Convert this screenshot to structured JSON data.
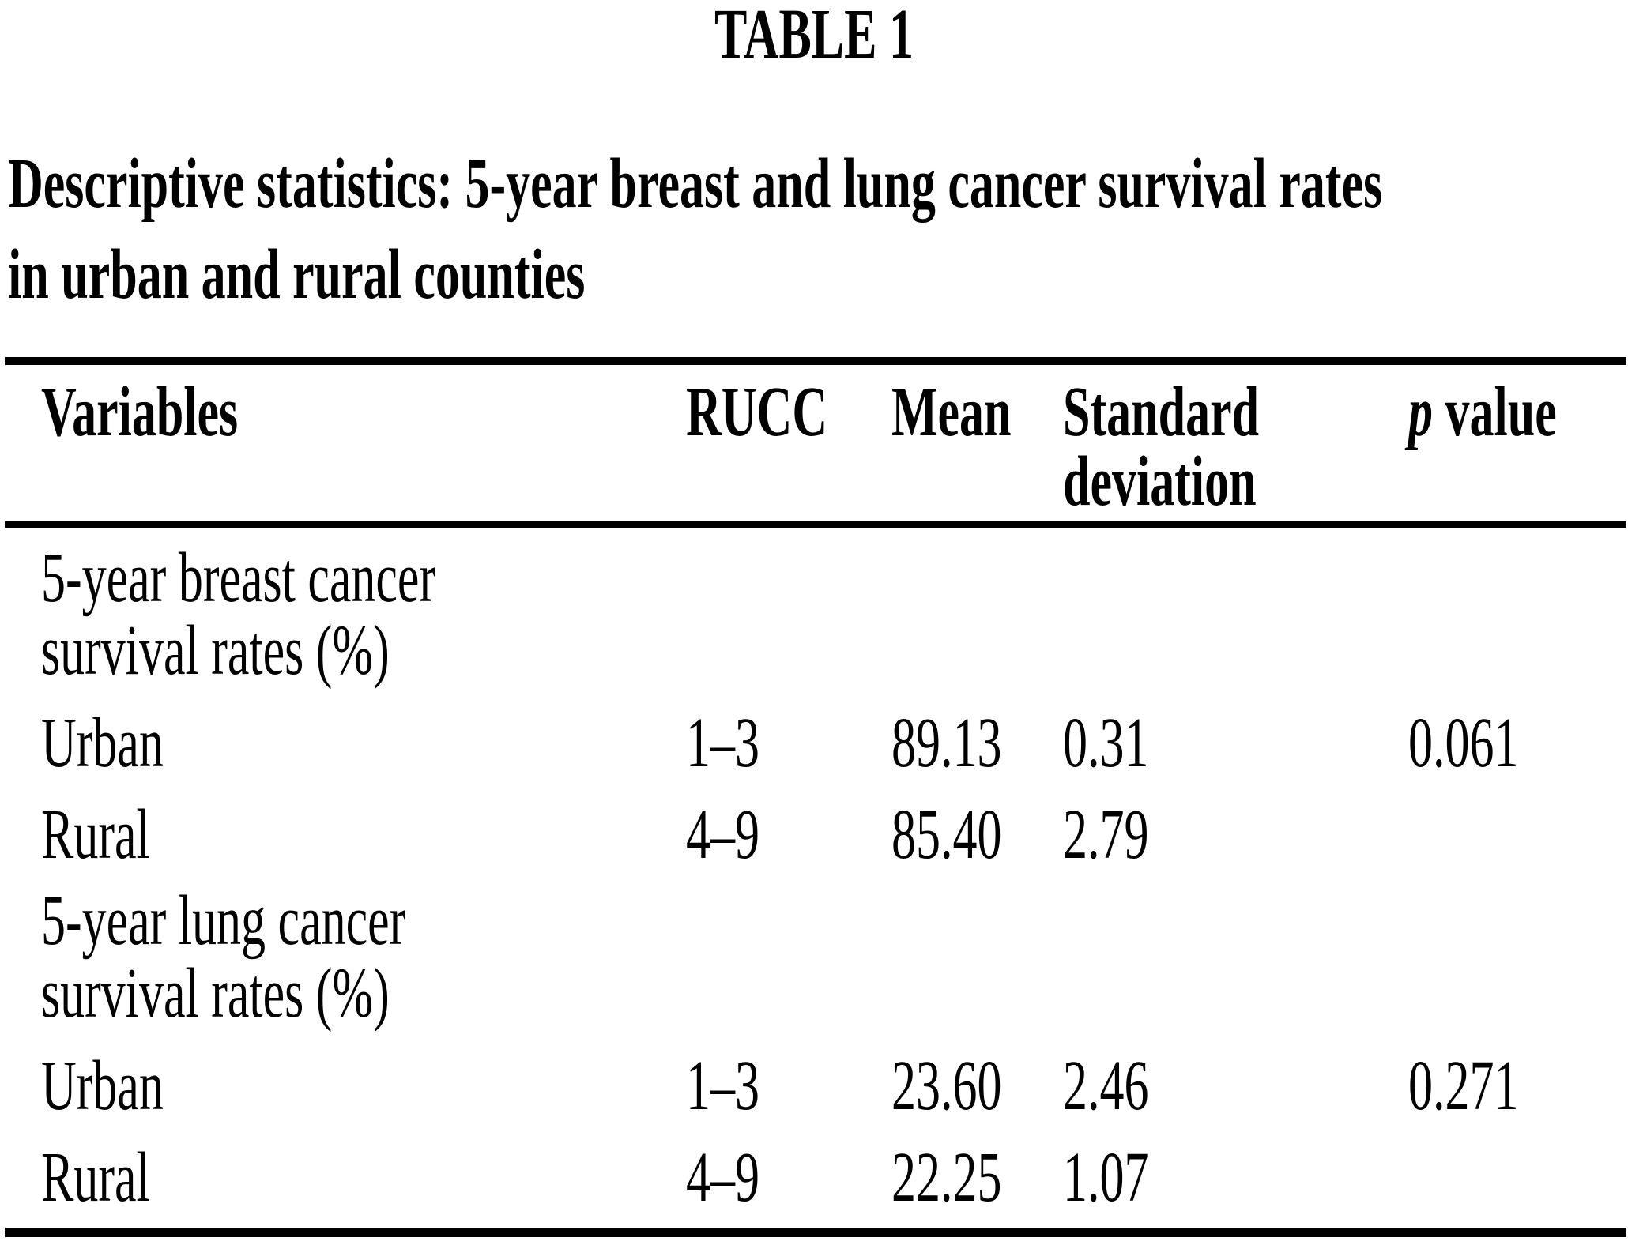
{
  "table_label": "TABLE 1",
  "title_line1": "Descriptive statistics: 5-year breast and lung cancer survival rates",
  "title_line2": "in urban and rural counties",
  "header": {
    "variables": "Variables",
    "rucc": "RUCC",
    "mean": "Mean",
    "sd_line1": "Standard",
    "sd_line2": "deviation",
    "p_symbol": "p",
    "p_rest": "value"
  },
  "rows": [
    {
      "type": "section",
      "line1": "5-year breast cancer",
      "line2": "survival rates (%)"
    },
    {
      "type": "data",
      "variable": "Urban",
      "rucc": "1–3",
      "mean": "89.13",
      "sd": "0.31",
      "p": "0.061"
    },
    {
      "type": "data",
      "variable": "Rural",
      "rucc": "4–9",
      "mean": "85.40",
      "sd": "2.79",
      "p": ""
    },
    {
      "type": "section",
      "line1": "5-year lung cancer",
      "line2": "survival rates (%)"
    },
    {
      "type": "data",
      "variable": "Urban",
      "rucc": "1–3",
      "mean": "23.60",
      "sd": "2.46",
      "p": "0.271"
    },
    {
      "type": "data",
      "variable": "Rural",
      "rucc": "4–9",
      "mean": "22.25",
      "sd": "1.07",
      "p": ""
    }
  ]
}
